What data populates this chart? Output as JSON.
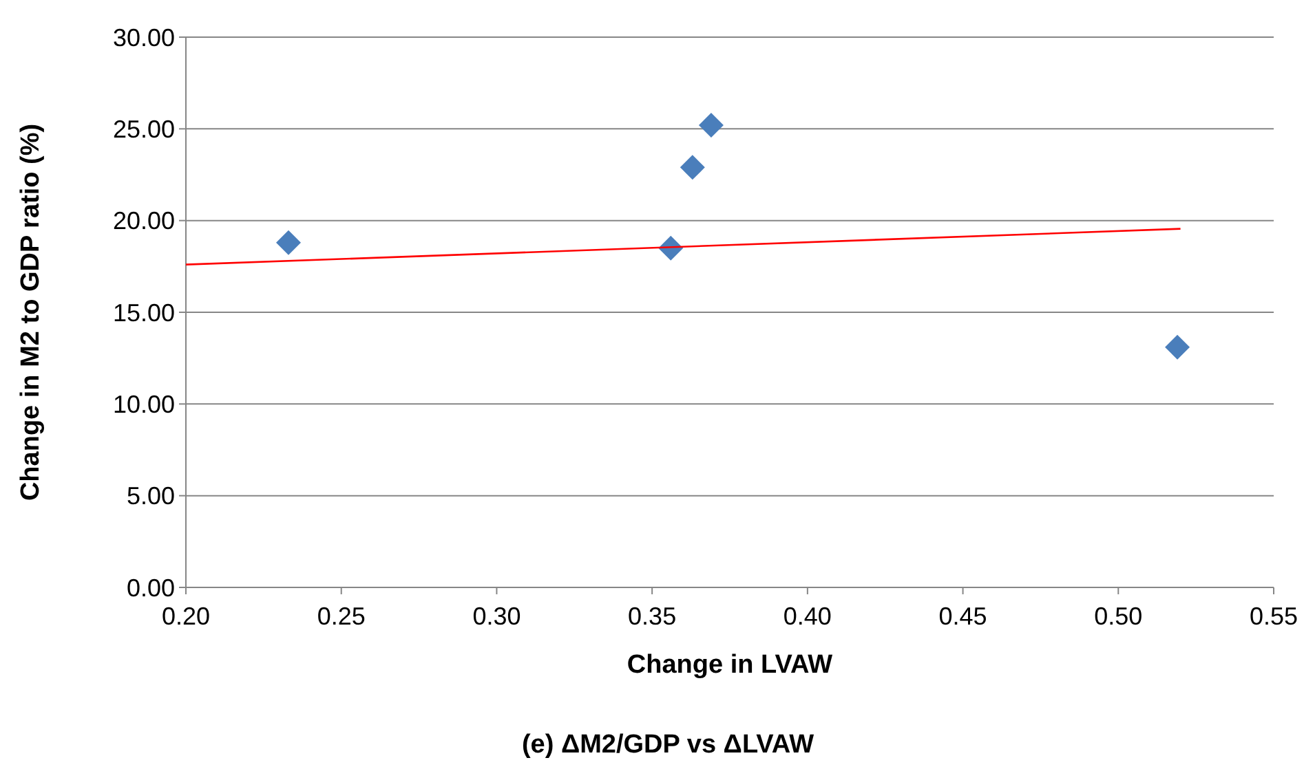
{
  "chart_data": {
    "type": "scatter",
    "title": "(e) ΔM2/GDP vs ΔLVAW",
    "xlabel": "Change in LVAW",
    "ylabel": "Change in M2 to GDP ratio (%)",
    "xlim": [
      0.2,
      0.55
    ],
    "xticks": [
      {
        "value": 0.2,
        "label": "0.20"
      },
      {
        "value": 0.25,
        "label": "0.25"
      },
      {
        "value": 0.3,
        "label": "0.30"
      },
      {
        "value": 0.35,
        "label": "0.35"
      },
      {
        "value": 0.4,
        "label": "0.40"
      },
      {
        "value": 0.45,
        "label": "0.45"
      },
      {
        "value": 0.5,
        "label": "0.50"
      },
      {
        "value": 0.55,
        "label": "0.55"
      }
    ],
    "ylim": [
      0,
      30
    ],
    "yticks": [
      {
        "value": 0,
        "label": "0.00"
      },
      {
        "value": 5,
        "label": "5.00"
      },
      {
        "value": 10,
        "label": "10.00"
      },
      {
        "value": 15,
        "label": "15.00"
      },
      {
        "value": 20,
        "label": "20.00"
      },
      {
        "value": 25,
        "label": "25.00"
      },
      {
        "value": 30,
        "label": "30.00"
      }
    ],
    "grid": "y",
    "marker": "diamond",
    "series": [
      {
        "color": "#4a7ebb",
        "x": [
          0.233,
          0.356,
          0.363,
          0.369,
          0.519
        ],
        "values": [
          18.8,
          18.5,
          22.9,
          25.2,
          13.1
        ]
      },
      {
        "type": "line",
        "color": "#ff0000",
        "x": [
          0.2,
          0.52
        ],
        "values": [
          17.6,
          19.55
        ],
        "marker": "none",
        "line_style": "solid"
      }
    ]
  }
}
